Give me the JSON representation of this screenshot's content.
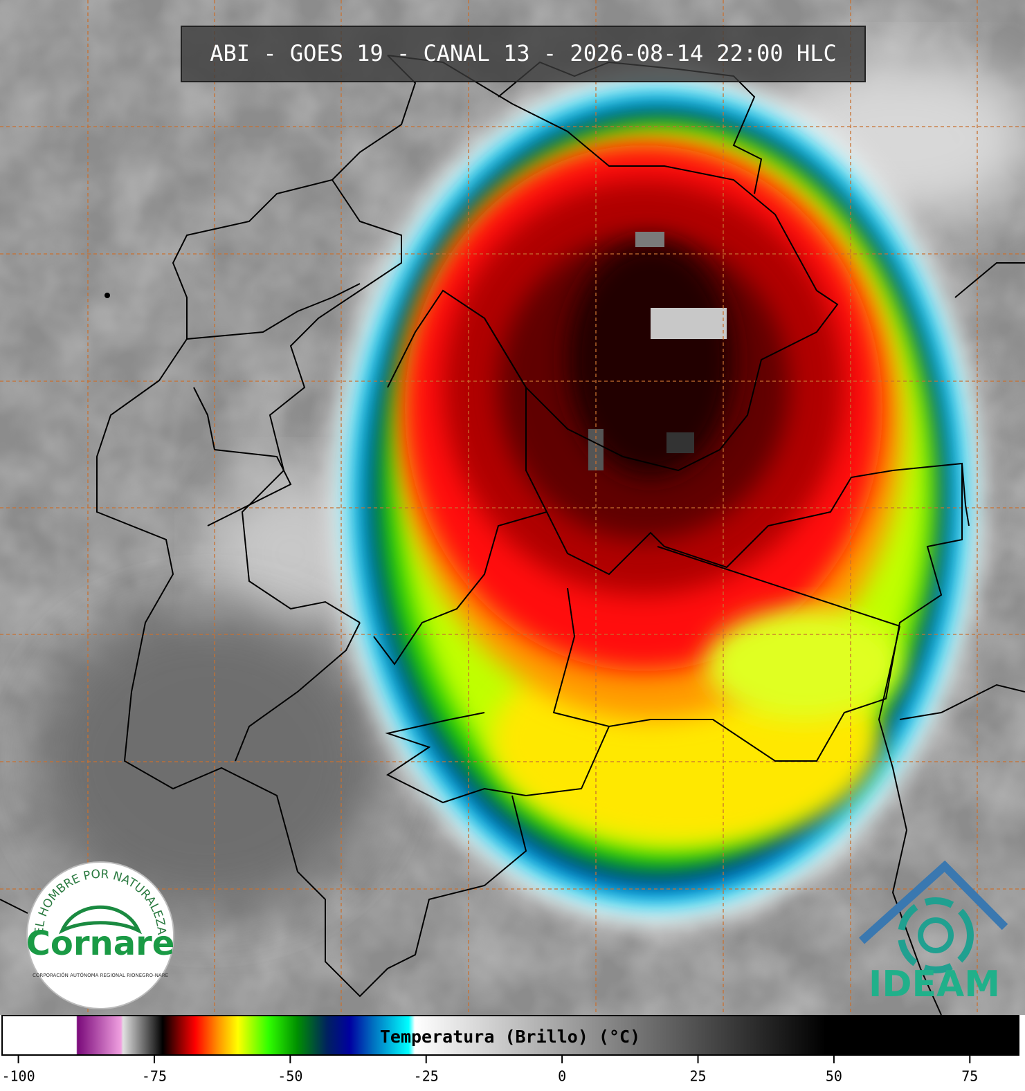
{
  "header": {
    "title": "ABI - GOES 19 - CANAL 13 - 2026-08-14 22:00 HLC"
  },
  "colorbar": {
    "label": "Temperatura (Brillo) (°C)",
    "lim": [
      -103,
      84
    ],
    "ticks": [
      -100,
      -75,
      -50,
      -25,
      0,
      25,
      50,
      75
    ]
  },
  "logos": {
    "cornare": {
      "motto": "EL HOMBRE POR NATURALEZA",
      "name": "Cornare",
      "subtitle": "CORPORACIÓN AUTÓNOMA REGIONAL RIONEGRO-NARE"
    },
    "ideam": {
      "name": "IDEAM"
    }
  }
}
